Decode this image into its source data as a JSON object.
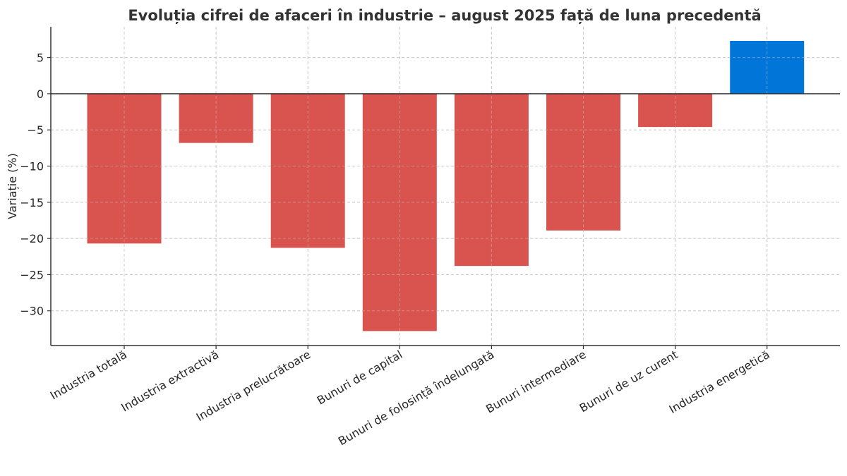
{
  "chart_data": {
    "type": "bar",
    "title": "Evoluția cifrei de afaceri în industrie – august 2025 față de luna precedentă",
    "xlabel": "",
    "ylabel": "Variație (%)",
    "ylim": [
      -34.8,
      9.25
    ],
    "yticks": [
      5,
      0,
      -5,
      -10,
      -15,
      -20,
      -25,
      -30
    ],
    "ytick_labels": [
      "5",
      "0",
      "−5",
      "−10",
      "−15",
      "−20",
      "−25",
      "−30"
    ],
    "grid": true,
    "categories": [
      "Industria totală",
      "Industria extractivă",
      "Industria prelucrătoare",
      "Bunuri de capital",
      "Bunuri de folosință îndelungată",
      "Bunuri intermediare",
      "Bunuri de uz curent",
      "Industria energetică"
    ],
    "values": [
      -20.7,
      -6.8,
      -21.3,
      -32.8,
      -23.8,
      -18.9,
      -4.6,
      7.3
    ],
    "colors": {
      "negative": "#d9534f",
      "positive": "#0275d8",
      "axis": "#333333",
      "grid": "#cccccc"
    }
  }
}
